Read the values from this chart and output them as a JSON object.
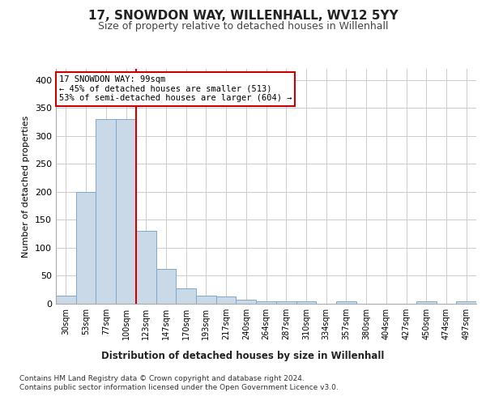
{
  "title1": "17, SNOWDON WAY, WILLENHALL, WV12 5YY",
  "title2": "Size of property relative to detached houses in Willenhall",
  "xlabel": "Distribution of detached houses by size in Willenhall",
  "ylabel": "Number of detached properties",
  "bar_labels": [
    "30sqm",
    "53sqm",
    "77sqm",
    "100sqm",
    "123sqm",
    "147sqm",
    "170sqm",
    "193sqm",
    "217sqm",
    "240sqm",
    "264sqm",
    "287sqm",
    "310sqm",
    "334sqm",
    "357sqm",
    "380sqm",
    "404sqm",
    "427sqm",
    "450sqm",
    "474sqm",
    "497sqm"
  ],
  "bar_values": [
    15,
    200,
    330,
    330,
    130,
    62,
    27,
    15,
    13,
    7,
    4,
    4,
    4,
    0,
    4,
    0,
    0,
    0,
    4,
    0,
    5
  ],
  "bar_color": "#c9d9e8",
  "bar_edge_color": "#7fa8c9",
  "highlight_bar_index": 3,
  "highlight_line_color": "#cc0000",
  "ylim": [
    0,
    420
  ],
  "yticks": [
    0,
    50,
    100,
    150,
    200,
    250,
    300,
    350,
    400
  ],
  "annotation_title": "17 SNOWDON WAY: 99sqm",
  "annotation_line1": "← 45% of detached houses are smaller (513)",
  "annotation_line2": "53% of semi-detached houses are larger (604) →",
  "annotation_box_color": "#ffffff",
  "annotation_box_edge": "#cc0000",
  "grid_color": "#cccccc",
  "background_color": "#ffffff",
  "footer1": "Contains HM Land Registry data © Crown copyright and database right 2024.",
  "footer2": "Contains public sector information licensed under the Open Government Licence v3.0."
}
